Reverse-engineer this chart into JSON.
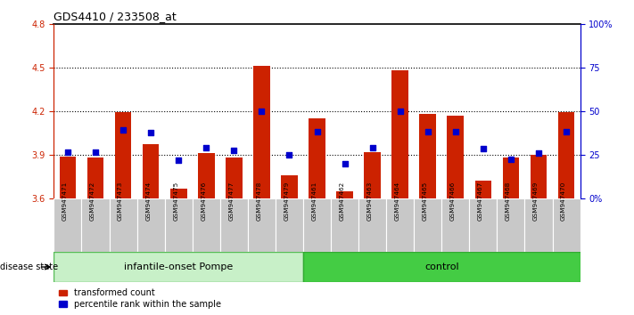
{
  "title": "GDS4410 / 233508_at",
  "samples": [
    "GSM947471",
    "GSM947472",
    "GSM947473",
    "GSM947474",
    "GSM947475",
    "GSM947476",
    "GSM947477",
    "GSM947478",
    "GSM947479",
    "GSM947461",
    "GSM947462",
    "GSM947463",
    "GSM947464",
    "GSM947465",
    "GSM947466",
    "GSM947467",
    "GSM947468",
    "GSM947469",
    "GSM947470"
  ],
  "red_values": [
    3.89,
    3.88,
    4.19,
    3.97,
    3.67,
    3.91,
    3.88,
    4.51,
    3.76,
    4.15,
    3.65,
    3.92,
    4.48,
    4.18,
    4.17,
    3.72,
    3.88,
    3.9,
    4.19
  ],
  "blue_values": [
    3.92,
    3.92,
    4.07,
    4.05,
    3.86,
    3.95,
    3.93,
    4.2,
    3.9,
    4.06,
    3.84,
    3.95,
    4.2,
    4.06,
    4.06,
    3.94,
    3.87,
    3.91,
    4.06
  ],
  "group_labels": [
    "infantile-onset Pompe",
    "control"
  ],
  "group_split": 9,
  "n_total": 19,
  "ylim_left": [
    3.6,
    4.8
  ],
  "ylim_right": [
    0,
    100
  ],
  "yticks_left": [
    3.6,
    3.9,
    4.2,
    4.5,
    4.8
  ],
  "yticks_right": [
    0,
    25,
    50,
    75,
    100
  ],
  "ytick_labels_right": [
    "0%",
    "25",
    "50",
    "75",
    "100%"
  ],
  "dotted_lines": [
    3.9,
    4.2,
    4.5
  ],
  "bar_color": "#cc2200",
  "dot_color": "#0000cc",
  "bar_width": 0.6,
  "base_value": 3.6,
  "legend_labels": [
    "transformed count",
    "percentile rank within the sample"
  ],
  "disease_state_label": "disease state",
  "group1_color": "#c8f0c8",
  "group2_color": "#44cc44",
  "xlabel_gray": "#c8c8c8"
}
